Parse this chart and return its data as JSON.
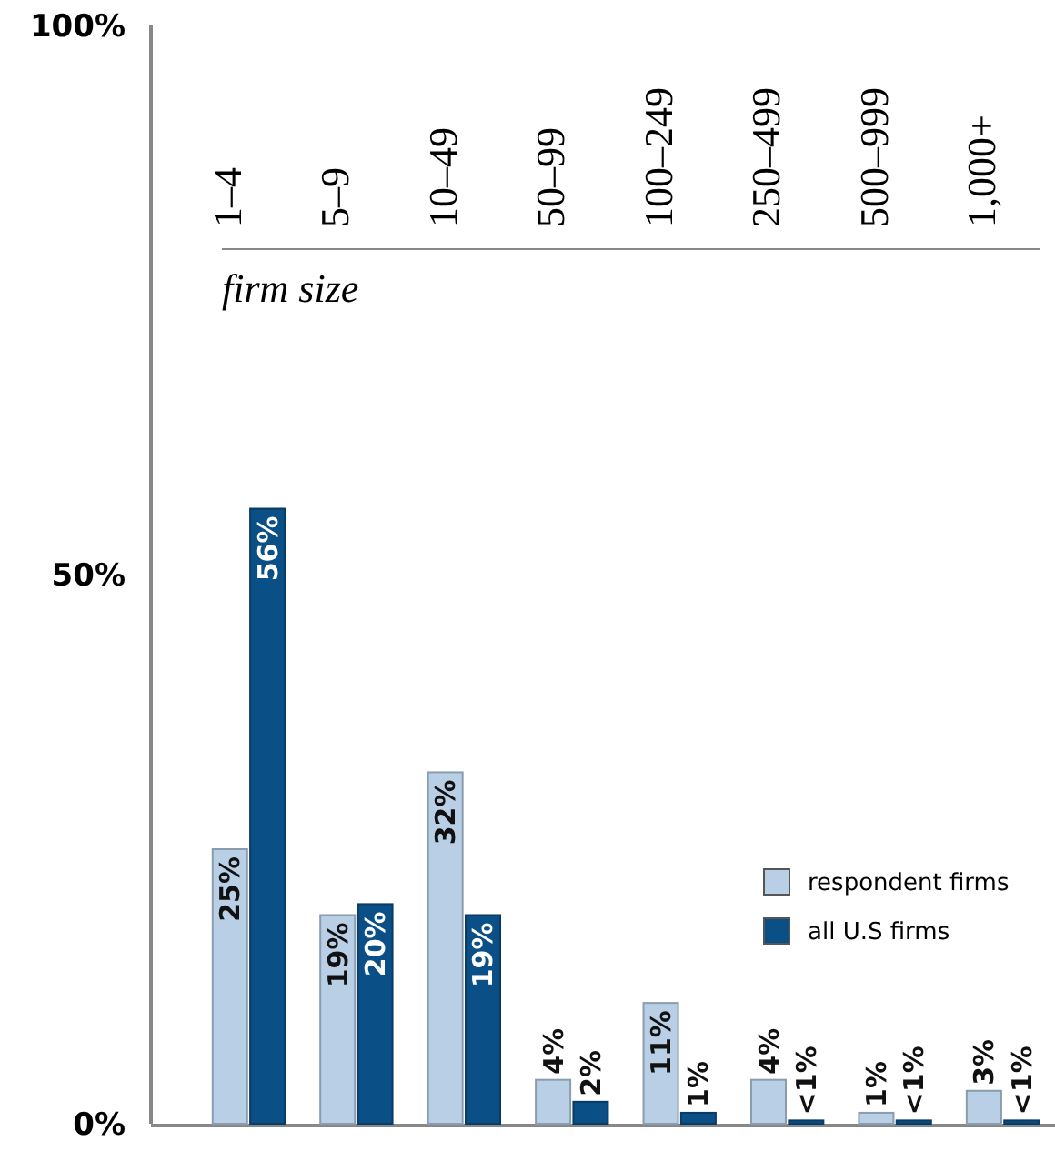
{
  "chart_data": {
    "type": "bar",
    "xlabel": "firm size",
    "categories": [
      "1–4",
      "5–9",
      "10–49",
      "50–99",
      "100–249",
      "250–499",
      "500–999",
      "1,000+"
    ],
    "series": [
      {
        "name": "respondent firms",
        "color": "#b8cfe6",
        "values": [
          25,
          19,
          32,
          4,
          11,
          4,
          1,
          3
        ],
        "value_labels": [
          "25%",
          "19%",
          "32%",
          "4%",
          "11%",
          "4%",
          "1%",
          "3%"
        ]
      },
      {
        "name": "all U.S firms",
        "color": "#0a4f86",
        "values": [
          56,
          20,
          19,
          2,
          1,
          0.3,
          0.3,
          0.3
        ],
        "value_labels": [
          "56%",
          "20%",
          "19%",
          "2%",
          "1%",
          "<1%",
          "<1%",
          "<1%"
        ]
      }
    ],
    "ylim": [
      0,
      100
    ],
    "yticks": [
      {
        "value": 0,
        "label": "0%"
      },
      {
        "value": 50,
        "label": "50%"
      },
      {
        "value": 100,
        "label": "100%"
      }
    ],
    "grid": false,
    "legend": "bottom right"
  }
}
